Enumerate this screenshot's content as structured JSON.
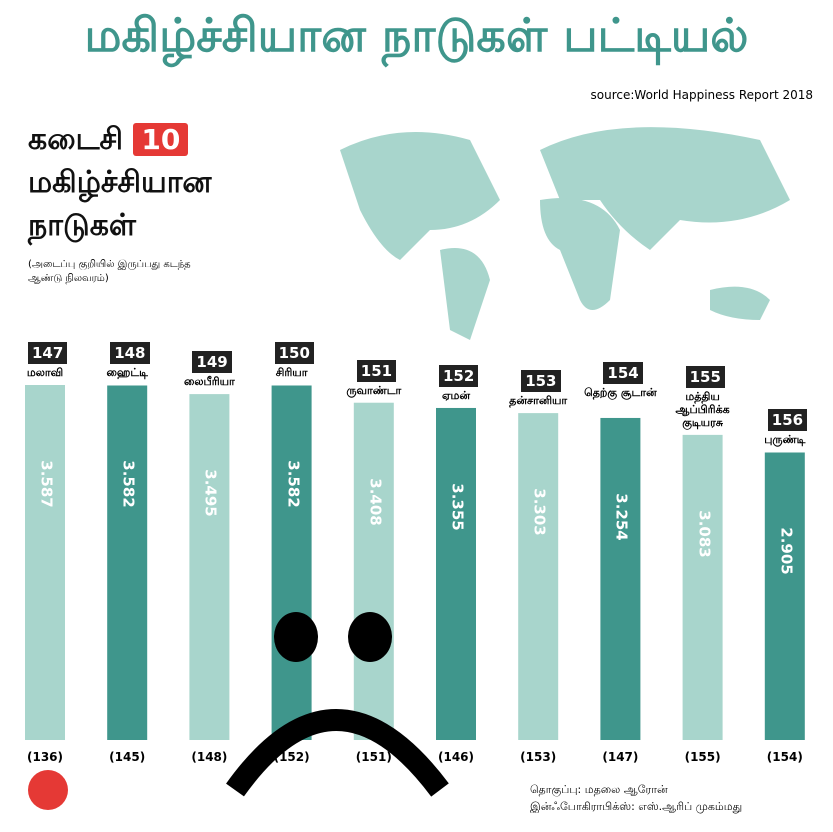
{
  "chart_data": {
    "type": "bar",
    "title": "மகிழ்ச்சியான நாடுகள் பட்டியல்",
    "source": "source:World Happiness Report 2018",
    "heading": [
      "கடைசி",
      "10",
      "மகிழ்ச்சியான",
      "நாடுகள்"
    ],
    "note": "(அடைப்பு குறியில் இருப்பது கடந்த ஆண்டு நிலவரம்)",
    "categories": [
      "மலாவி",
      "ஹைட்டி",
      "லைபீரியா",
      "சிரியா",
      "ருவாண்டா",
      "ஏமன்",
      "தன்சானியா",
      "தெற்கு சூடான்",
      "மத்திய ஆப்பிரிக்க குடியரசு",
      "புருண்டி"
    ],
    "ranks": [
      147,
      148,
      149,
      150,
      151,
      152,
      153,
      154,
      155,
      156
    ],
    "values": [
      3.587,
      3.582,
      3.495,
      3.582,
      3.408,
      3.355,
      3.303,
      3.254,
      3.083,
      2.905
    ],
    "previous_ranks": [
      "(136)",
      "(145)",
      "(148)",
      "(152)",
      "(151)",
      "(146)",
      "(153)",
      "(147)",
      "(155)",
      "(154)"
    ],
    "colors": [
      "#a8d5cc",
      "#3f968c",
      "#a8d5cc",
      "#3f968c",
      "#a8d5cc",
      "#3f968c",
      "#a8d5cc",
      "#3f968c",
      "#a8d5cc",
      "#3f968c"
    ],
    "credits": [
      "தொகுப்பு: மதலை ஆரோன்",
      "இன்ஃபோகிராபிக்ஸ்: எஸ்.ஆரிப் முகம்மது"
    ]
  }
}
